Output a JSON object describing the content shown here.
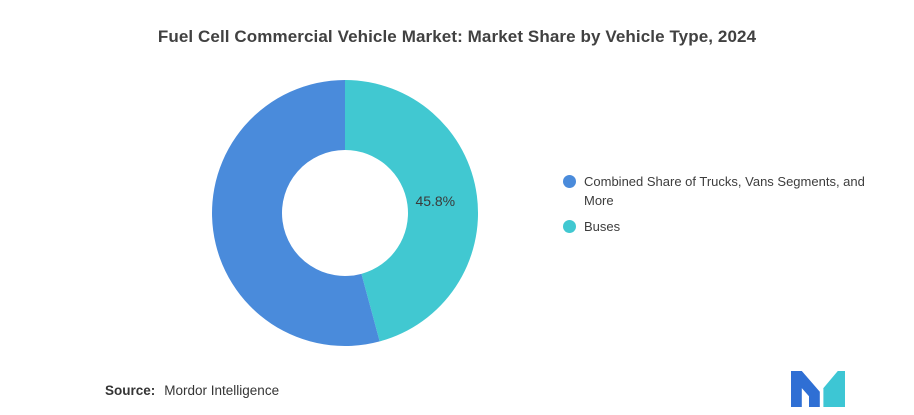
{
  "page": {
    "background": "#ffffff",
    "source_label": "Source:",
    "source_value": "Mordor Intelligence",
    "brand_colors": {
      "logo_blue": "#2F6FD4",
      "logo_teal": "#3DC6D4"
    }
  },
  "chart_data": {
    "type": "pie",
    "subtype": "donut",
    "title": "Fuel Cell Commercial Vehicle Market: Market Share by Vehicle Type, 2024",
    "unit": "%",
    "start_angle": "top",
    "direction": "clockwise",
    "inner_radius_ratio": 0.47,
    "legend_position": "right",
    "series": [
      {
        "name": "Combined Share of Trucks, Vans Segments, and More",
        "value": 54.2,
        "color": "#4A8BDB",
        "label_text": ""
      },
      {
        "name": "Buses",
        "value": 45.8,
        "color": "#41C8D1",
        "label_text": "45.8%"
      }
    ]
  }
}
